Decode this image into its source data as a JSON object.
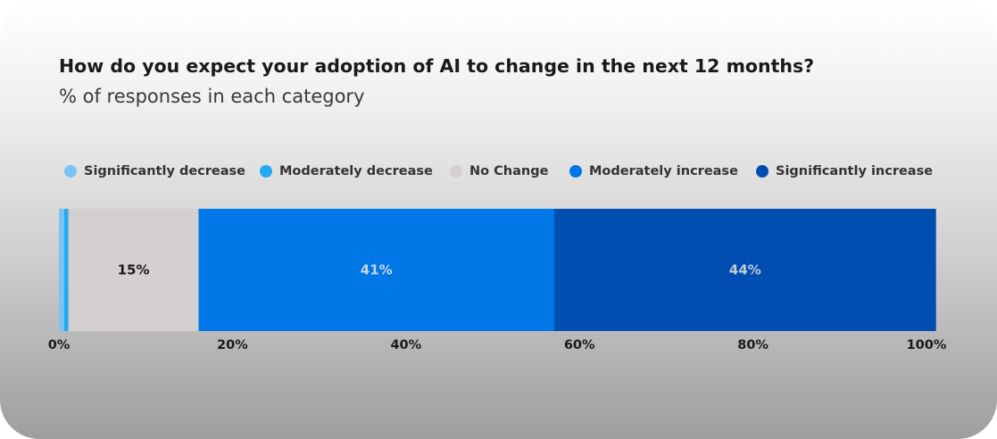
{
  "chart_data": {
    "type": "bar",
    "orientation": "horizontal-stacked",
    "title": "How do you expect your adoption of AI to change in the next 12 months?",
    "subtitle": "% of responses in each category",
    "xlim": [
      0,
      100
    ],
    "x_ticks": [
      0,
      20,
      40,
      60,
      80,
      100
    ],
    "x_tick_labels": [
      "0%",
      "20%",
      "40%",
      "60%",
      "80%",
      "100%"
    ],
    "legend_position": "top",
    "grid": false,
    "series": [
      {
        "name": "Significantly decrease",
        "value": 0.6,
        "color": "#7cc3f5",
        "label": "",
        "label_color": "#1a1a1a"
      },
      {
        "name": "Moderately decrease",
        "value": 0.5,
        "color": "#27a9f2",
        "label": "",
        "label_color": "#1a1a1a"
      },
      {
        "name": "No Change",
        "value": 15,
        "color": "#d4d0cf",
        "label": "15%",
        "label_color": "#1a1a1a"
      },
      {
        "name": "Moderately increase",
        "value": 41,
        "color": "#0077e6",
        "label": "41%",
        "label_color": "#cfd6df"
      },
      {
        "name": "Significantly increase",
        "value": 44,
        "color": "#004eb0",
        "label": "44%",
        "label_color": "#c6ccd6"
      }
    ]
  }
}
